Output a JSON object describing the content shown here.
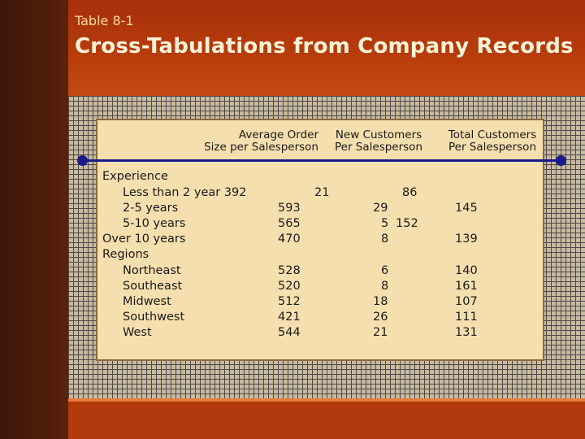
{
  "slide": {
    "table_number": "Table 8-1",
    "title": "Cross-Tabulations from Company Records"
  },
  "table": {
    "headers": {
      "avg_order": [
        "Average Order",
        "Size per Salesperson"
      ],
      "new_customers": [
        "New Customers",
        "Per Salesperson"
      ],
      "total_customers": [
        "Total Customers",
        "Per Salesperson"
      ]
    },
    "rows": [
      {
        "label": "Experience",
        "cells": []
      },
      {
        "label": "Less than 2 year 392",
        "cells": [
          "21",
          "86"
        ]
      },
      {
        "label": "2-5 years",
        "cells": [
          "593",
          "29",
          "145"
        ]
      },
      {
        "label": "5-10 years",
        "cells": [
          "565",
          "5",
          "152"
        ]
      },
      {
        "label": "Over 10 years",
        "cells": [
          "470",
          "8",
          "139"
        ]
      },
      {
        "label": "Regions",
        "cells": []
      },
      {
        "label": "Northeast",
        "cells": [
          "528",
          "6",
          "140"
        ]
      },
      {
        "label": "Southeast",
        "cells": [
          "520",
          "8",
          "161"
        ]
      },
      {
        "label": "Midwest",
        "cells": [
          "512",
          "18",
          "107"
        ]
      },
      {
        "label": "Southwest",
        "cells": [
          "421",
          "26",
          "111"
        ]
      },
      {
        "label": "West",
        "cells": [
          "544",
          "21",
          "131"
        ]
      }
    ]
  },
  "colors": {
    "accent": "#c94a10",
    "rule": "#1a1a8a",
    "panel": "#f6dfae"
  }
}
